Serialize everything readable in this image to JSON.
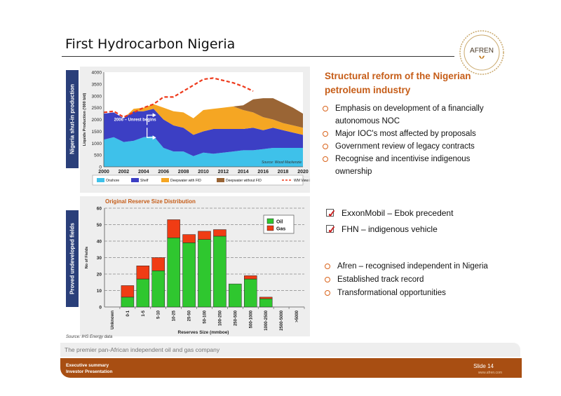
{
  "slide": {
    "title": "First Hydrocarbon Nigeria",
    "logo_text": "AFREN",
    "tag_top": "Nigeria shut-in production",
    "tag_bottom": "Proved undeveloped fields",
    "right_heading": "Structural reform of the Nigerian petroleum industry",
    "bullets_top": [
      "Emphasis on development of a financially autonomous NOC",
      "Major IOC's most affected by proposals",
      "Government review of legacy contracts",
      "Recognise and incentivise indigenous ownership"
    ],
    "checks": [
      "ExxonMobil – Ebok precedent",
      "FHN – indigenous vehicle"
    ],
    "bullets_bottom": [
      "Afren – recognised independent in Nigeria",
      "Established track record",
      "Transformational opportunities"
    ],
    "source_bottom": "Source:  IHS Energy data",
    "tagline": "The premier pan-African independent oil and gas company",
    "footer_line1": "Executive summary",
    "footer_line2": "Investor Presentation",
    "slide_label": "Slide",
    "slide_number": "14",
    "footer_url": "www.afren.com"
  },
  "colors": {
    "accent": "#c65d18",
    "tag_blue": "#2a3f7a",
    "footer_brown": "#a84e12",
    "onshore": "#3ec1ea",
    "shelf": "#3c3fc4",
    "deepwater_fid": "#f5a623",
    "deepwater_nofid": "#9a6535",
    "wm_view": "#ee3a1c",
    "oil": "#2fc72f",
    "gas": "#f03c14"
  },
  "chart_data": [
    {
      "type": "area",
      "title": "",
      "xlabel": "",
      "ylabel": "Liquids Production ('000 b/d)",
      "x": [
        2000,
        2001,
        2002,
        2003,
        2004,
        2005,
        2006,
        2007,
        2008,
        2009,
        2010,
        2011,
        2012,
        2013,
        2014,
        2015,
        2016,
        2017,
        2018,
        2019,
        2020
      ],
      "xticks": [
        "2000",
        "2002",
        "2004",
        "2006",
        "2008",
        "2010",
        "2012",
        "2014",
        "2016",
        "2018",
        "2020"
      ],
      "yticks": [
        "0",
        "500",
        "1000",
        "1500",
        "2000",
        "2500",
        "3000",
        "3500",
        "4000"
      ],
      "ylim": [
        0,
        4000
      ],
      "stacked": true,
      "series": [
        {
          "name": "Onshore",
          "values": [
            1150,
            1250,
            1050,
            1100,
            1250,
            1300,
            800,
            650,
            650,
            450,
            600,
            550,
            600,
            650,
            700,
            700,
            750,
            800,
            800,
            800,
            800
          ]
        },
        {
          "name": "Shelf",
          "values": [
            1100,
            1050,
            1000,
            1250,
            1100,
            1150,
            1200,
            1100,
            1000,
            900,
            900,
            1050,
            1000,
            950,
            900,
            950,
            800,
            850,
            750,
            650,
            550
          ]
        },
        {
          "name": "Deepwater with FID",
          "values": [
            0,
            0,
            0,
            100,
            150,
            200,
            500,
            600,
            650,
            700,
            900,
            850,
            900,
            950,
            800,
            650,
            550,
            350,
            300,
            300,
            300
          ]
        },
        {
          "name": "Deepwater without FID",
          "values": [
            0,
            0,
            0,
            0,
            0,
            0,
            0,
            0,
            0,
            0,
            0,
            0,
            0,
            0,
            200,
            550,
            800,
            900,
            850,
            750,
            600
          ]
        }
      ],
      "line_series": {
        "name": "WM View in 2005",
        "x": [
          2000,
          2001,
          2002,
          2003,
          2004,
          2005,
          2006,
          2007,
          2008,
          2009,
          2010,
          2011,
          2012,
          2013,
          2014,
          2015
        ],
        "values": [
          2300,
          2350,
          2100,
          2300,
          2500,
          2650,
          2950,
          2950,
          3200,
          3450,
          3700,
          3750,
          3650,
          3550,
          3400,
          3200
        ]
      },
      "legend_position": "bottom",
      "annotation": "2006 – Unrest  begins",
      "source": "Source: Wood Mackenzie"
    },
    {
      "type": "bar",
      "title": "Original Reserve Size Distribution",
      "xlabel": "Reserves Size (mmboe)",
      "ylabel": "No of Fields",
      "categories": [
        "Unknown",
        "0-1",
        "1-5",
        "5-10",
        "10-25",
        "25-50",
        "50-100",
        "100-250",
        "250-500",
        "500-1000",
        "1000-2500",
        "2500-5000",
        ">5000"
      ],
      "ylim": [
        0,
        60
      ],
      "yticks": [
        "0",
        "10",
        "20",
        "30",
        "40",
        "50",
        "60"
      ],
      "stacked": true,
      "series": [
        {
          "name": "Oil",
          "values": [
            0,
            6,
            17,
            22,
            42,
            39,
            41,
            43,
            14,
            17,
            5,
            0,
            0
          ]
        },
        {
          "name": "Gas",
          "values": [
            0,
            7,
            8,
            8,
            11,
            5,
            5,
            4,
            0,
            2,
            1,
            0,
            0
          ]
        }
      ],
      "legend_position": "top-right",
      "grid": true
    }
  ]
}
